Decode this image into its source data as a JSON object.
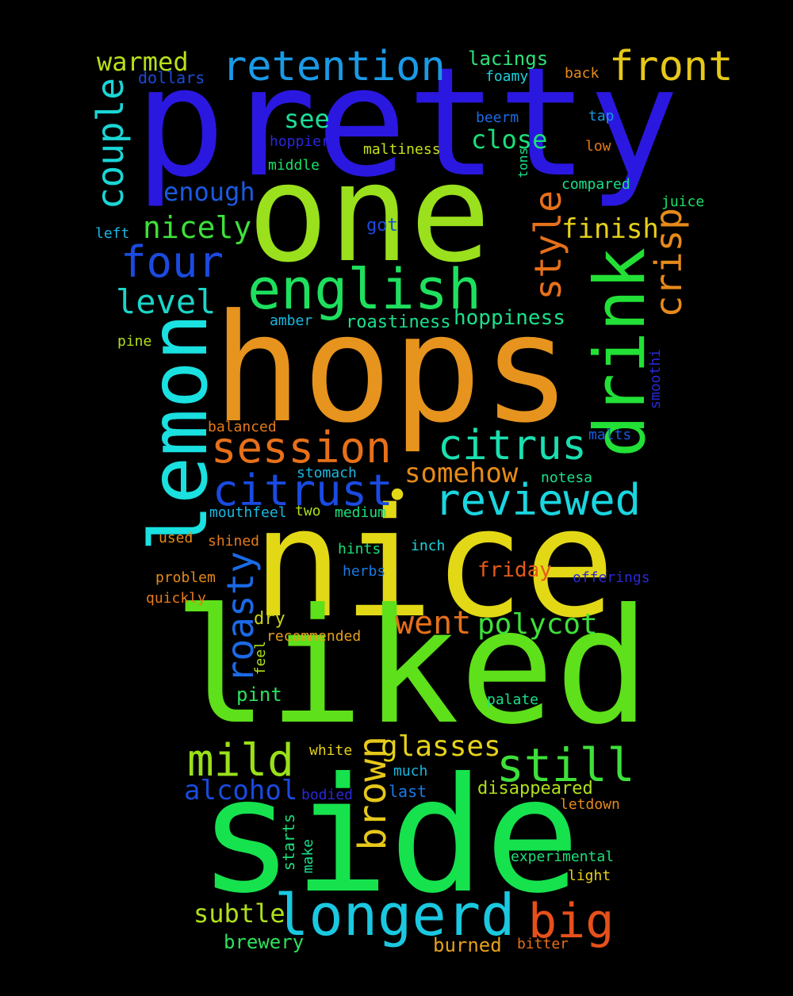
{
  "words": {
    "pretty": {
      "text": "pretty",
      "color": "#2a18e0"
    },
    "one": {
      "text": "one",
      "color": "#9ae01c"
    },
    "hops": {
      "text": "hops",
      "color": "#e6941e"
    },
    "nice": {
      "text": "nice",
      "color": "#e2d816"
    },
    "liked": {
      "text": "liked",
      "color": "#5ee01a"
    },
    "side": {
      "text": "side",
      "color": "#16e24e"
    },
    "lemon": {
      "text": "lemon",
      "color": "#1ae0e0"
    },
    "drink": {
      "text": "drink",
      "color": "#22e036"
    },
    "english": {
      "text": "english",
      "color": "#1ee05e"
    },
    "retention": {
      "text": "retention",
      "color": "#1a9ae6"
    },
    "front": {
      "text": "front",
      "color": "#e6c81a"
    },
    "warmed": {
      "text": "warmed",
      "color": "#b8e01a"
    },
    "dollars": {
      "text": "dollars",
      "color": "#1a4ad8"
    },
    "couple": {
      "text": "couple",
      "color": "#1ad6d6"
    },
    "lacings": {
      "text": "lacings",
      "color": "#2ee07a"
    },
    "foamy": {
      "text": "foamy",
      "color": "#1ad0e0"
    },
    "back": {
      "text": "back",
      "color": "#e68a1a"
    },
    "see": {
      "text": "see",
      "color": "#1ae09a"
    },
    "beerm": {
      "text": "beerm",
      "color": "#1a6ae6"
    },
    "tap": {
      "text": "tap",
      "color": "#1a9ae6"
    },
    "close": {
      "text": "close",
      "color": "#1ae07a"
    },
    "hoppier": {
      "text": "hoppier",
      "color": "#2a28d8"
    },
    "maltiness": {
      "text": "maltiness",
      "color": "#c8e01a"
    },
    "low": {
      "text": "low",
      "color": "#e67a1a"
    },
    "middle": {
      "text": "middle",
      "color": "#1ae06a"
    },
    "tons": {
      "text": "tons",
      "color": "#1ae08a"
    },
    "compared": {
      "text": "compared",
      "color": "#1ae08a"
    },
    "enough": {
      "text": "enough",
      "color": "#1a5ae0"
    },
    "style": {
      "text": "style",
      "color": "#e6701a"
    },
    "juice": {
      "text": "juice",
      "color": "#1ae06a"
    },
    "nicely": {
      "text": "nicely",
      "color": "#3ee03a"
    },
    "left": {
      "text": "left",
      "color": "#1ab8e0"
    },
    "got": {
      "text": "got",
      "color": "#1a4ae0"
    },
    "finish": {
      "text": "finish",
      "color": "#e6d21a"
    },
    "crisp": {
      "text": "crisp",
      "color": "#e68a1a"
    },
    "four": {
      "text": "four",
      "color": "#1a4ae0"
    },
    "level": {
      "text": "level",
      "color": "#1ad6c8"
    },
    "hoppiness": {
      "text": "hoppiness",
      "color": "#1ae08a"
    },
    "roastiness": {
      "text": "roastiness",
      "color": "#1ae08a"
    },
    "amber": {
      "text": "amber",
      "color": "#1ab8e0"
    },
    "pine": {
      "text": "pine",
      "color": "#b0e01a"
    },
    "smoothi": {
      "text": "smoothi",
      "color": "#2a28d8"
    },
    "balanced": {
      "text": "balanced",
      "color": "#e67a1a"
    },
    "session": {
      "text": "session",
      "color": "#e6701a"
    },
    "citrus": {
      "text": "citrus",
      "color": "#1ae0b0"
    },
    "malts": {
      "text": "malts",
      "color": "#1a5ae0"
    },
    "citrust": {
      "text": "citrust",
      "color": "#1a4ae0"
    },
    "stomach": {
      "text": "stomach",
      "color": "#1ab8e0"
    },
    "somehow": {
      "text": "somehow",
      "color": "#e68a1a"
    },
    "notesa": {
      "text": "notesa",
      "color": "#1ae08a"
    },
    "reviewed": {
      "text": "reviewed",
      "color": "#1ad6e0"
    },
    "mouthfeel": {
      "text": "mouthfeel",
      "color": "#1ab8e0"
    },
    "two": {
      "text": "two",
      "color": "#b0e01a"
    },
    "medium": {
      "text": "medium",
      "color": "#1ae07a"
    },
    "used": {
      "text": "used",
      "color": "#e68a1a"
    },
    "shined": {
      "text": "shined",
      "color": "#e67a1a"
    },
    "hints": {
      "text": "hints",
      "color": "#1ae07a"
    },
    "inch": {
      "text": "inch",
      "color": "#1ad6e0"
    },
    "roasty": {
      "text": "roasty",
      "color": "#1a6ae6"
    },
    "friday": {
      "text": "friday",
      "color": "#e65a1a"
    },
    "problem": {
      "text": "problem",
      "color": "#e68a1a"
    },
    "herbs": {
      "text": "herbs",
      "color": "#1a7ae6"
    },
    "offerings": {
      "text": "offerings",
      "color": "#2a28d8"
    },
    "quickly": {
      "text": "quickly",
      "color": "#e67a1a"
    },
    "went": {
      "text": "went",
      "color": "#e6701a"
    },
    "polycot": {
      "text": "polycot",
      "color": "#3ee03a"
    },
    "dry": {
      "text": "dry",
      "color": "#c8d21a"
    },
    "recommended": {
      "text": "recommended",
      "color": "#e6a01a"
    },
    "feel": {
      "text": "feel",
      "color": "#b0e01a"
    },
    "pint": {
      "text": "pint",
      "color": "#2ee05e"
    },
    "palate": {
      "text": "palate",
      "color": "#1ae08a"
    },
    "mild": {
      "text": "mild",
      "color": "#9ae01a"
    },
    "brown": {
      "text": "brown",
      "color": "#e6c81a"
    },
    "glasses": {
      "text": "glasses",
      "color": "#e6d21a"
    },
    "still": {
      "text": "still",
      "color": "#3ee03a"
    },
    "white": {
      "text": "white",
      "color": "#e6d21a"
    },
    "much": {
      "text": "much",
      "color": "#1ab8e0"
    },
    "alcohol": {
      "text": "alcohol",
      "color": "#1a4ae0"
    },
    "bodied": {
      "text": "bodied",
      "color": "#2a28d8"
    },
    "last": {
      "text": "last",
      "color": "#1a7ae6"
    },
    "disappeared": {
      "text": "disappeared",
      "color": "#b0e01a"
    },
    "letdown": {
      "text": "letdown",
      "color": "#e68a1a"
    },
    "starts": {
      "text": "starts",
      "color": "#1ae07a"
    },
    "make": {
      "text": "make",
      "color": "#1ae08a"
    },
    "experimental": {
      "text": "experimental",
      "color": "#1ae07a"
    },
    "light": {
      "text": "light",
      "color": "#e6d21a"
    },
    "subtle": {
      "text": "subtle",
      "color": "#b0e01a"
    },
    "longerd": {
      "text": "longerd",
      "color": "#1ac8e0"
    },
    "big": {
      "text": "big",
      "color": "#e6501a"
    },
    "brewery": {
      "text": "brewery",
      "color": "#2ee05e"
    },
    "burned": {
      "text": "burned",
      "color": "#e6a01a"
    },
    "bitter": {
      "text": "bitter",
      "color": "#e6701a"
    },
    "dot": {
      "text": "•",
      "color": "#e2d816"
    }
  }
}
